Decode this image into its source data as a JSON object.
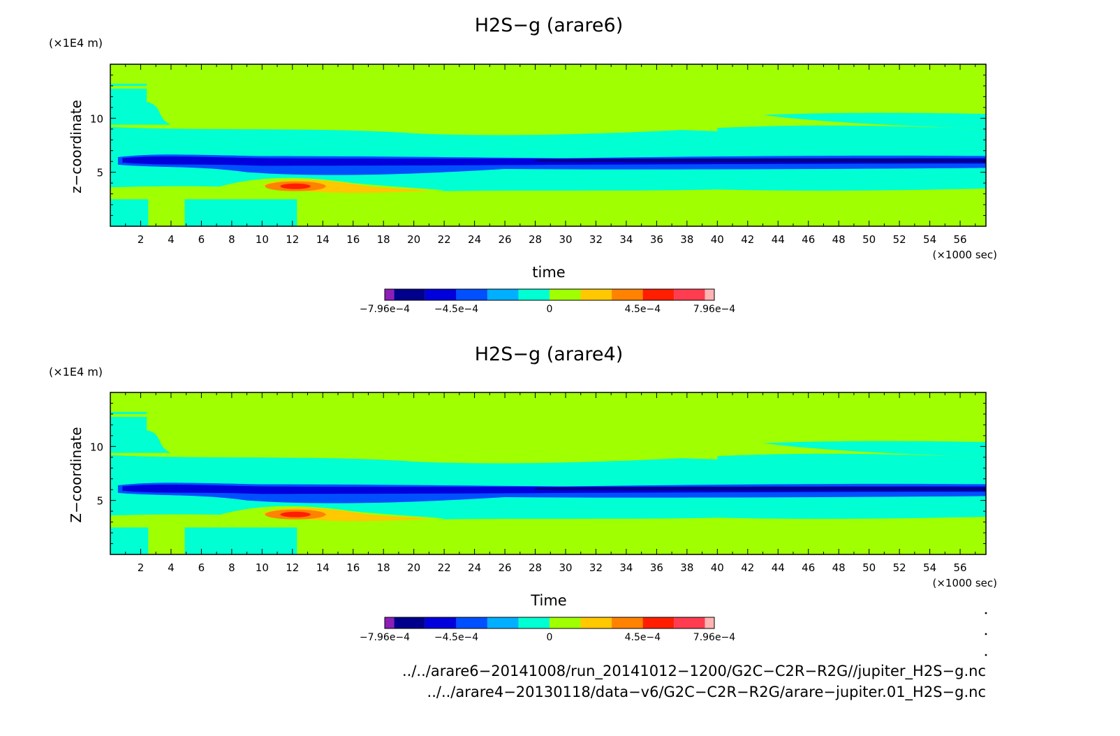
{
  "chart_data": [
    {
      "type": "heatmap",
      "title": "H2S−g (arare6)",
      "xlabel": "time",
      "x_unit": "(×1000 sec)",
      "ylabel": "z−coordinate",
      "y_unit": "(×1E4 m)",
      "x_ticks": [
        "2",
        "4",
        "6",
        "8",
        "10",
        "12",
        "14",
        "16",
        "18",
        "20",
        "22",
        "24",
        "26",
        "28",
        "30",
        "32",
        "34",
        "36",
        "38",
        "40",
        "42",
        "44",
        "46",
        "48",
        "50",
        "52",
        "54",
        "56"
      ],
      "y_ticks": [
        "5",
        "10"
      ],
      "xlim": [
        0,
        57.7
      ],
      "ylim": [
        0,
        15
      ],
      "colorbar": {
        "labels": [
          "−7.96e−4",
          "−4.5e−4",
          "0",
          "4.5e−4",
          "7.96e−4"
        ],
        "label_values": [
          -0.000796,
          -0.00045,
          0,
          0.00045,
          0.000796
        ],
        "range": [
          -0.000796,
          0.000796
        ],
        "colors": [
          "#8c1fb8",
          "#00008c",
          "#0000dc",
          "#0050ff",
          "#00afff",
          "#00ffd2",
          "#a0ff00",
          "#ffc800",
          "#ff8200",
          "#ff1e00",
          "#ff3c50",
          "#ffb4b4"
        ]
      }
    },
    {
      "type": "heatmap",
      "title": "H2S−g (arare4)",
      "xlabel": "Time",
      "x_unit": "(×1000 sec)",
      "ylabel": "Z−coordinate",
      "y_unit": "(×1E4 m)",
      "x_ticks": [
        "2",
        "4",
        "6",
        "8",
        "10",
        "12",
        "14",
        "16",
        "18",
        "20",
        "22",
        "24",
        "26",
        "28",
        "30",
        "32",
        "34",
        "36",
        "38",
        "40",
        "42",
        "44",
        "46",
        "48",
        "50",
        "52",
        "54",
        "56"
      ],
      "y_ticks": [
        "5",
        "10"
      ],
      "xlim": [
        0,
        57.7
      ],
      "ylim": [
        0,
        15
      ],
      "colorbar": {
        "labels": [
          "−7.96e−4",
          "−4.5e−4",
          "0",
          "4.5e−4",
          "7.96e−4"
        ],
        "label_values": [
          -0.000796,
          -0.00045,
          0,
          0.00045,
          0.000796
        ],
        "range": [
          -0.000796,
          0.000796
        ],
        "colors": [
          "#8c1fb8",
          "#00008c",
          "#0000dc",
          "#0050ff",
          "#00afff",
          "#00ffd2",
          "#a0ff00",
          "#ffc800",
          "#ff8200",
          "#ff1e00",
          "#ff3c50",
          "#ffb4b4"
        ]
      }
    }
  ],
  "footer": {
    "file1": "../../arare6−20141008/run_20141012−1200/G2C−C2R−R2G//jupiter_H2S−g.nc",
    "file2": "../../arare4−20130118/data−v6/G2C−C2R−R2G/arare−jupiter.01_H2S−g.nc"
  }
}
